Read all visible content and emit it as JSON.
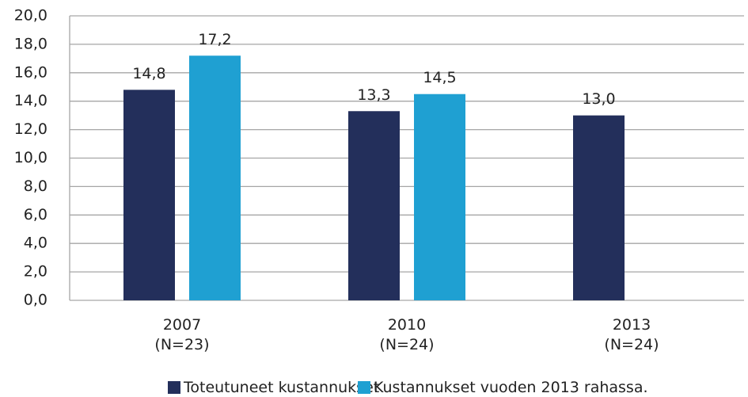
{
  "chart_data": {
    "type": "bar",
    "categories": [
      "2007\n(N=23)",
      "2010\n(N=24)",
      "2013\n(N=24)"
    ],
    "series": [
      {
        "name": "Toteutuneet kustannukset",
        "color": "#232f5b",
        "values": [
          14.8,
          13.3,
          13.0
        ],
        "value_labels": [
          "14,8",
          "13,3",
          "13,0"
        ]
      },
      {
        "name": "Kustannukset vuoden 2013 rahassa.",
        "color": "#1fa0d2",
        "values": [
          17.2,
          14.5,
          null
        ],
        "value_labels": [
          "17,2",
          "14,5",
          null
        ]
      }
    ],
    "ylim": [
      0,
      20
    ],
    "yticks": [
      {
        "value": 0,
        "label": "0,0"
      },
      {
        "value": 2,
        "label": "2,0"
      },
      {
        "value": 4,
        "label": "4,0"
      },
      {
        "value": 6,
        "label": "6,0"
      },
      {
        "value": 8,
        "label": "8,0"
      },
      {
        "value": 10,
        "label": "10,0"
      },
      {
        "value": 12,
        "label": "12,0"
      },
      {
        "value": 14,
        "label": "14,0"
      },
      {
        "value": 16,
        "label": "16,0"
      },
      {
        "value": 18,
        "label": "18,0"
      },
      {
        "value": 20,
        "label": "20,0"
      }
    ],
    "grid": true,
    "legend": "bottom"
  }
}
